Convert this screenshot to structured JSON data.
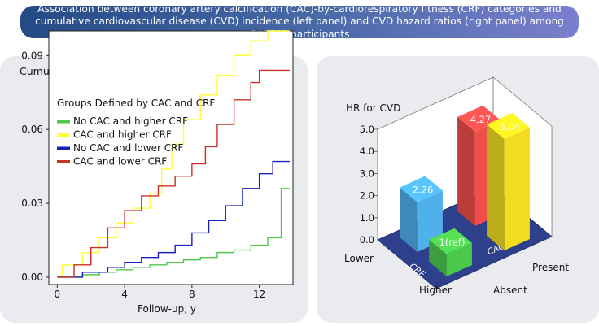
{
  "header": {
    "title": "Association between coronary artery calcification (CAC)-by-cardiorespiratory fitness (CRF) categories and cumulative cardiovascular disease (CVD) incidence (left panel) and CVD hazard ratios (right panel) among CARDIA participants"
  },
  "colors": {
    "green": "#4cc94c",
    "yellow": "#ffff3a",
    "blue": "#1b20b8",
    "red": "#c9302a",
    "panel_bg": "#e9ebef"
  },
  "chart_data": [
    {
      "type": "line",
      "step": true,
      "title": "Cumulative Incidence of CVD",
      "xlabel": "Follow-up, y",
      "ylabel": "",
      "xlim": [
        -0.5,
        14
      ],
      "ylim": [
        -0.003,
        0.1
      ],
      "xticks": [
        "0",
        "4",
        "8",
        "12"
      ],
      "yticks": [
        "0.00",
        "0.03",
        "0.06",
        "0.09"
      ],
      "legend_title": "Groups Defined by CAC and CRF",
      "legend_position": "top-left",
      "series": [
        {
          "name": "No CAC and higher CRF",
          "color": "#4cc94c",
          "x": [
            0,
            1.5,
            2.5,
            3.5,
            4.5,
            5.5,
            6.5,
            7.5,
            8.5,
            9.5,
            10.5,
            11.5,
            12.5,
            13.3,
            13.3,
            13.8
          ],
          "y": [
            0.0,
            0.001,
            0.002,
            0.003,
            0.004,
            0.005,
            0.006,
            0.007,
            0.008,
            0.01,
            0.011,
            0.013,
            0.016,
            0.018,
            0.036,
            0.036
          ]
        },
        {
          "name": "CAC and higher CRF",
          "color": "#ffff3a",
          "x": [
            0,
            0.3,
            1.5,
            2.5,
            3.5,
            4.5,
            5.5,
            6.2,
            6.8,
            7.5,
            8.5,
            9.5,
            10.5,
            11.5,
            12.5,
            13.8
          ],
          "y": [
            0.0,
            0.005,
            0.01,
            0.016,
            0.022,
            0.028,
            0.034,
            0.044,
            0.054,
            0.064,
            0.074,
            0.082,
            0.09,
            0.096,
            0.1,
            0.1
          ]
        },
        {
          "name": "No CAC and lower CRF",
          "color": "#1b20b8",
          "x": [
            0,
            1.5,
            3,
            4,
            5,
            6,
            7,
            8,
            9,
            10,
            11,
            12,
            12.8,
            13.8
          ],
          "y": [
            0.0,
            0.002,
            0.004,
            0.006,
            0.008,
            0.01,
            0.013,
            0.018,
            0.023,
            0.029,
            0.036,
            0.042,
            0.047,
            0.047
          ]
        },
        {
          "name": "CAC and lower CRF",
          "color": "#c9302a",
          "x": [
            0,
            1,
            2,
            3,
            4,
            5,
            6,
            7,
            8,
            8.8,
            9.5,
            10.5,
            11.5,
            12,
            13.8
          ],
          "y": [
            0.0,
            0.005,
            0.012,
            0.02,
            0.027,
            0.033,
            0.037,
            0.041,
            0.046,
            0.053,
            0.062,
            0.072,
            0.079,
            0.084,
            0.084
          ]
        }
      ]
    },
    {
      "type": "bar",
      "projection": "3d",
      "title": "HR for CVD",
      "zlim": [
        0,
        5
      ],
      "zticks": [
        "0.0",
        "1.0",
        "2.0",
        "3.0",
        "4.0",
        "5.0"
      ],
      "axis_crf": {
        "name": "CRF",
        "levels": [
          "Lower",
          "Higher"
        ]
      },
      "axis_cac": {
        "name": "CAC",
        "levels": [
          "Absent",
          "Present"
        ]
      },
      "bars": [
        {
          "crf": "Higher",
          "cac": "Absent",
          "value": 1.0,
          "label": "1(ref)",
          "color": "#4cc94c"
        },
        {
          "crf": "Lower",
          "cac": "Absent",
          "value": 2.26,
          "label": "2.26",
          "color": "#4fb0ea"
        },
        {
          "crf": "Higher",
          "cac": "Present",
          "value": 5.04,
          "label": "5.04",
          "color": "#f2dc20"
        },
        {
          "crf": "Lower",
          "cac": "Present",
          "value": 4.27,
          "label": "4.27",
          "color": "#ef4e4a"
        }
      ]
    }
  ]
}
